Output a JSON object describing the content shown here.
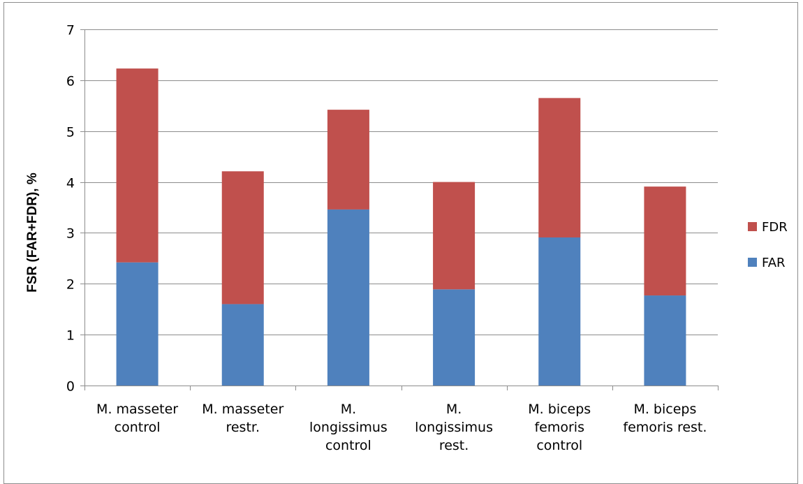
{
  "chart_data": {
    "type": "bar",
    "stacked": true,
    "title": "",
    "xlabel": "",
    "ylabel": "FSR (FAR+FDR), %",
    "ylim": [
      0,
      7
    ],
    "yticks": [
      0,
      1,
      2,
      3,
      4,
      5,
      6,
      7
    ],
    "grid": true,
    "legend_position": "right",
    "categories": [
      [
        "M. masseter",
        "control"
      ],
      [
        "M. masseter",
        "restr."
      ],
      [
        "M.",
        "longissimus",
        "control"
      ],
      [
        "M.",
        "longissimus",
        "rest."
      ],
      [
        "M. biceps",
        "femoris",
        "control"
      ],
      [
        "M. biceps",
        "femoris rest."
      ]
    ],
    "series": [
      {
        "name": "FAR",
        "color": "#4f81bd",
        "values": [
          2.42,
          1.6,
          3.46,
          1.89,
          2.91,
          1.77
        ]
      },
      {
        "name": "FDR",
        "color": "#c0504d",
        "values": [
          3.81,
          2.61,
          1.96,
          2.11,
          2.74,
          2.14
        ]
      }
    ],
    "legend_order": [
      "FDR",
      "FAR"
    ]
  }
}
